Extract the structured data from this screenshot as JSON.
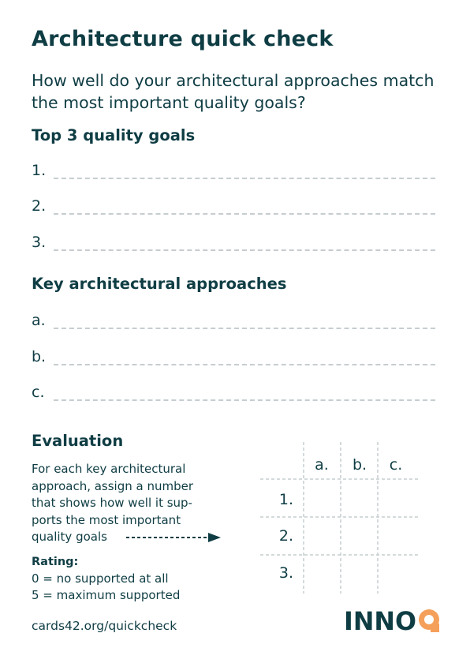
{
  "title": "Architecture quick check",
  "subtitle": "How well do your architectural approaches match the most important quality goals?",
  "quality_goals": {
    "heading": "Top 3 quality goals",
    "items": [
      "1.",
      "2.",
      "3."
    ]
  },
  "approaches": {
    "heading": "Key architectural approaches",
    "items": [
      "a.",
      "b.",
      "c."
    ]
  },
  "evaluation": {
    "heading": "Evaluation",
    "lines": [
      "For each key architectural",
      "approach, assign a number",
      "that shows how well it sup-",
      "ports the most important",
      "quality goals"
    ],
    "rating_label": "Rating:",
    "rating_lines": [
      "0 = no supported at all",
      "5 = maximum supported"
    ],
    "grid_columns": [
      "a.",
      "b.",
      "c."
    ],
    "grid_rows": [
      "1.",
      "2.",
      "3."
    ]
  },
  "footer": {
    "url": "cards42.org/quickcheck",
    "logo_text": "INNOQ"
  },
  "colors": {
    "text": "#0f3d44",
    "dash": "#c6cdd0",
    "accent": "#f5a05a",
    "logo": "#0f3d44"
  }
}
